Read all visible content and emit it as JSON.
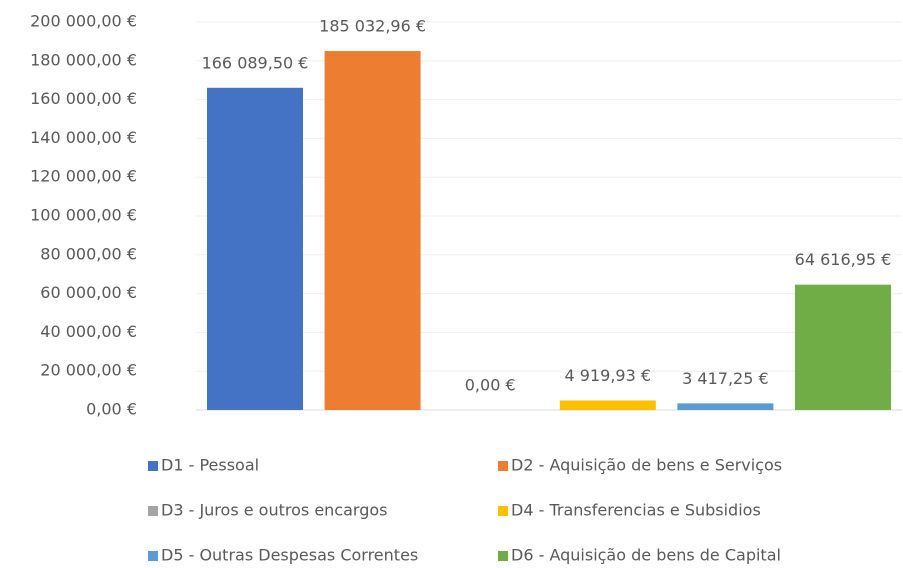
{
  "chart_data": {
    "type": "bar",
    "ylim": [
      0,
      200000
    ],
    "yticks": [
      {
        "value": 0,
        "label": "0,00 €"
      },
      {
        "value": 20000,
        "label": "20 000,00 €"
      },
      {
        "value": 40000,
        "label": "40 000,00 €"
      },
      {
        "value": 60000,
        "label": "60 000,00 €"
      },
      {
        "value": 80000,
        "label": "80 000,00 €"
      },
      {
        "value": 100000,
        "label": "100 000,00 €"
      },
      {
        "value": 120000,
        "label": "120 000,00 €"
      },
      {
        "value": 140000,
        "label": "140 000,00 €"
      },
      {
        "value": 160000,
        "label": "160 000,00 €"
      },
      {
        "value": 180000,
        "label": "180 000,00 €"
      },
      {
        "value": 200000,
        "label": "200 000,00 €"
      }
    ],
    "grid": true,
    "legend": "bottom",
    "series": [
      {
        "name": "D1 - Pessoal",
        "color": "#4472c4",
        "values": [
          166089.5
        ],
        "value_labels": [
          "166 089,50 €"
        ]
      },
      {
        "name": "D2 - Aquisição de bens e Serviços",
        "color": "#ed7d31",
        "values": [
          185032.96
        ],
        "value_labels": [
          "185 032,96 €"
        ]
      },
      {
        "name": "D3 - Juros e outros encargos",
        "color": "#a5a5a5",
        "values": [
          0
        ],
        "value_labels": [
          "0,00 €"
        ]
      },
      {
        "name": "D4 - Transferencias e Subsidios",
        "color": "#ffc000",
        "values": [
          4919.93
        ],
        "value_labels": [
          "4 919,93 €"
        ]
      },
      {
        "name": "D5 - Outras Despesas Correntes",
        "color": "#5b9bd5",
        "values": [
          3417.25
        ],
        "value_labels": [
          "3 417,25 €"
        ]
      },
      {
        "name": "D6 - Aquisição de bens de Capital",
        "color": "#70ad47",
        "values": [
          64616.95
        ],
        "value_labels": [
          "64 616,95 €"
        ]
      }
    ]
  }
}
